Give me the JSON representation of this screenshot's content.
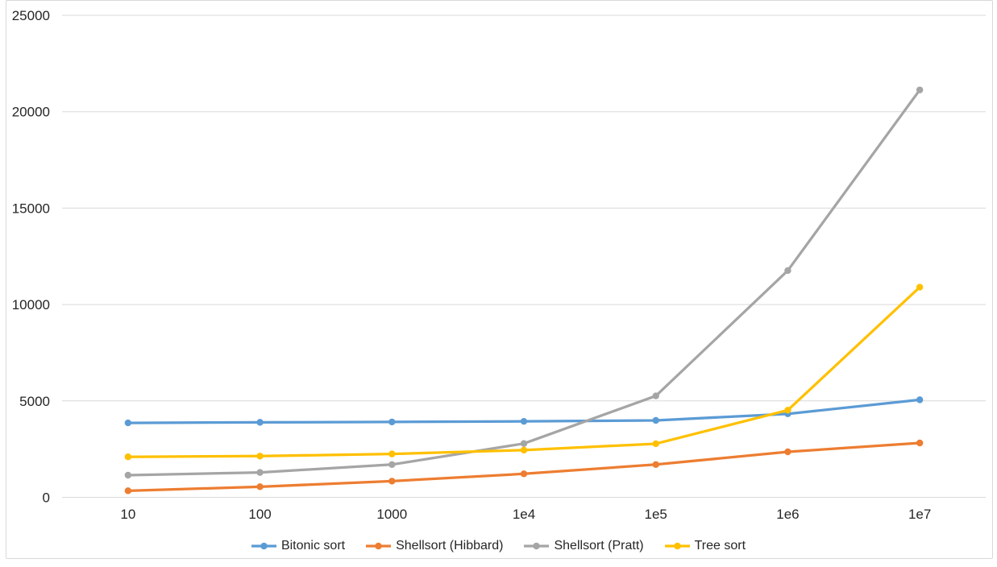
{
  "chart_data": {
    "type": "line",
    "title": "",
    "xlabel": "",
    "ylabel": "",
    "categories": [
      "10",
      "100",
      "1000",
      "1e4",
      "1e5",
      "1e6",
      "1e7"
    ],
    "series": [
      {
        "name": "Bitonic sort",
        "color": "#5B9BD5",
        "values": [
          3860,
          3890,
          3910,
          3940,
          3990,
          4330,
          5060
        ]
      },
      {
        "name": "Shellsort (Hibbard)",
        "color": "#ED7D31",
        "values": [
          340,
          550,
          840,
          1220,
          1700,
          2360,
          2820
        ]
      },
      {
        "name": "Shellsort (Pratt)",
        "color": "#A5A5A5",
        "values": [
          1150,
          1290,
          1700,
          2790,
          5260,
          11760,
          21130
        ]
      },
      {
        "name": "Tree sort",
        "color": "#FFC000",
        "values": [
          2100,
          2140,
          2250,
          2450,
          2780,
          4520,
          10900
        ]
      }
    ],
    "ylim": [
      0,
      25000
    ],
    "ytick_interval": 5000,
    "ytick_labels": [
      "0",
      "5000",
      "10000",
      "15000",
      "20000",
      "25000"
    ],
    "grid": "horizontal",
    "legend_position": "bottom",
    "marker": "circle",
    "style": {
      "grid_color": "#D9D9D9",
      "axis_line_color": "#D9D9D9",
      "tick_text_color": "#262626",
      "frame_border_color": "#D9D9D9",
      "background": "#FFFFFF"
    }
  }
}
